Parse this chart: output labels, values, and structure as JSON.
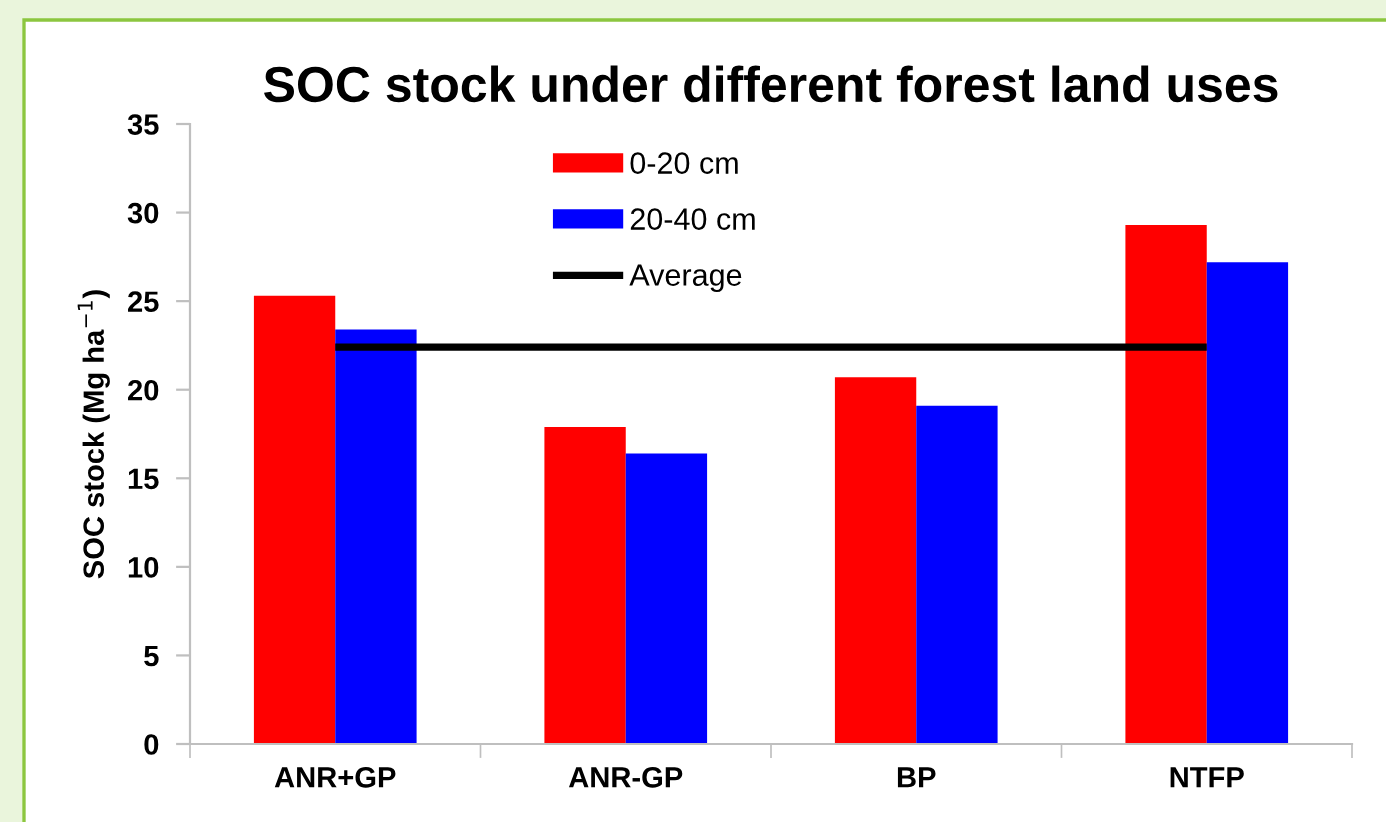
{
  "chart_data": {
    "type": "bar",
    "title": "SOC stock under different forest land uses",
    "ylabel": "SOC stock (Mg ha$^{−1}$)",
    "categories": [
      "ANR+GP",
      "ANR-GP",
      "BP",
      "NTFP"
    ],
    "series": [
      {
        "name": "0-20 cm",
        "color": "#ff0000",
        "values": [
          25.3,
          17.9,
          20.7,
          29.3
        ]
      },
      {
        "name": "20-40 cm",
        "color": "#0000ff",
        "values": [
          23.4,
          16.4,
          19.1,
          27.2
        ]
      },
      {
        "name": "Average",
        "type": "line",
        "color": "#000000",
        "values": [
          22.4,
          22.4,
          22.4,
          22.4
        ]
      }
    ],
    "ylim": [
      0,
      35
    ],
    "yticks": [
      0,
      5,
      10,
      15,
      20,
      25,
      30,
      35
    ],
    "grid": false,
    "legend": "top"
  }
}
